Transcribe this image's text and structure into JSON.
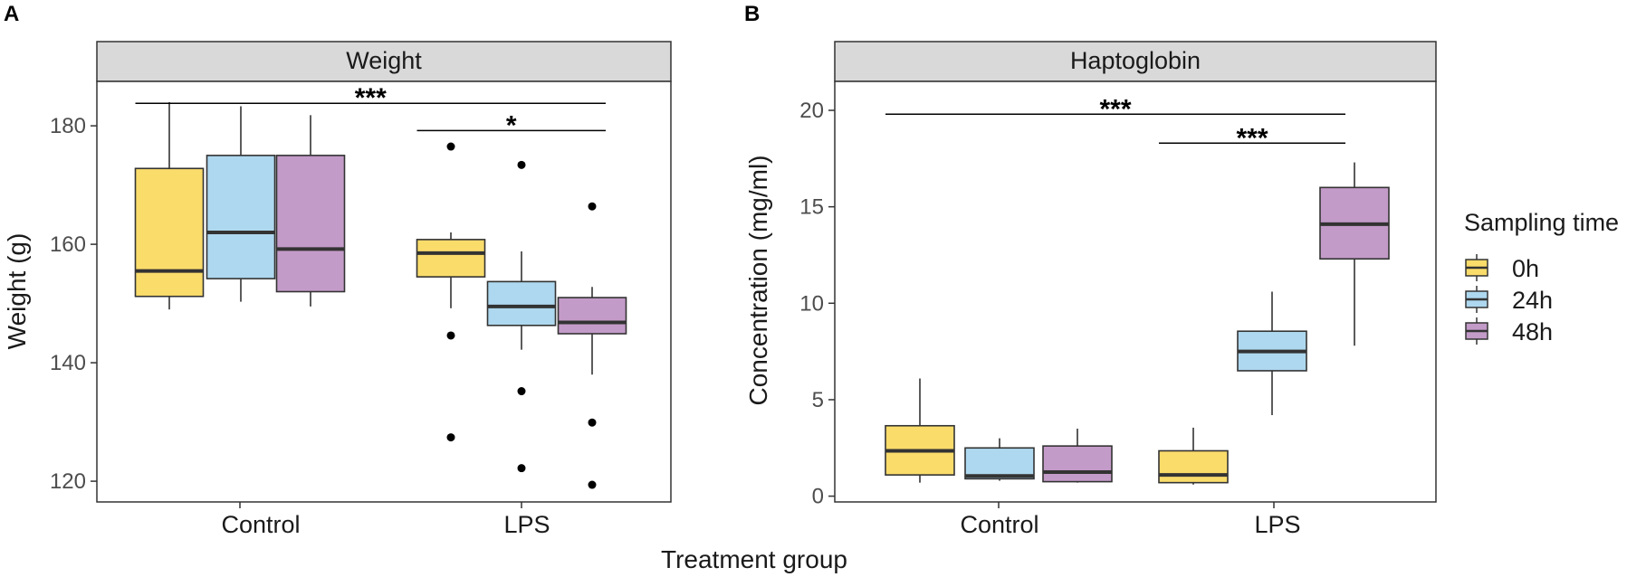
{
  "x_axis_title": "Treatment group",
  "legend": {
    "title": "Sampling time",
    "entries": [
      {
        "label": "0h",
        "color": "#fadc6b"
      },
      {
        "label": "24h",
        "color": "#aed8ef"
      },
      {
        "label": "48h",
        "color": "#c39bc8"
      }
    ]
  },
  "colors": {
    "strip_fill": "#d9d9d9",
    "box_stroke": "#333333",
    "median": "#333333"
  },
  "chart_data": [
    {
      "type": "boxplot",
      "panel_label": "A",
      "title": "Weight",
      "ylabel": "Weight (g)",
      "xlabel": "Treatment group",
      "ylim": [
        116.5,
        187.5
      ],
      "yticks": [
        120,
        140,
        160,
        180
      ],
      "groups": [
        "Control",
        "LPS"
      ],
      "series": [
        {
          "group": "Control",
          "time": "0h",
          "min": 149,
          "q1": 151.2,
          "median": 155.5,
          "q3": 172.8,
          "max": 184,
          "outliers": []
        },
        {
          "group": "Control",
          "time": "24h",
          "min": 150.3,
          "q1": 154.2,
          "median": 162,
          "q3": 175,
          "max": 183.3,
          "outliers": []
        },
        {
          "group": "Control",
          "time": "48h",
          "min": 149.5,
          "q1": 152,
          "median": 159.2,
          "q3": 175,
          "max": 181.8,
          "outliers": []
        },
        {
          "group": "LPS",
          "time": "0h",
          "min": 149.2,
          "q1": 154.5,
          "median": 158.5,
          "q3": 160.8,
          "max": 162,
          "outliers": [
            176.5,
            144.6,
            127.4
          ]
        },
        {
          "group": "LPS",
          "time": "24h",
          "min": 142.2,
          "q1": 146.3,
          "median": 149.5,
          "q3": 153.7,
          "max": 158.8,
          "outliers": [
            173.4,
            135.2,
            122.2
          ]
        },
        {
          "group": "LPS",
          "time": "48h",
          "min": 138,
          "q1": 144.9,
          "median": 146.8,
          "q3": 151,
          "max": 152.8,
          "outliers": [
            166.4,
            129.9,
            119.4
          ]
        }
      ],
      "significance": [
        {
          "label": "***",
          "y": 183.8,
          "from": 0,
          "to": 5
        },
        {
          "label": "*",
          "y": 179.2,
          "from": 3,
          "to": 5
        }
      ]
    },
    {
      "type": "boxplot",
      "panel_label": "B",
      "title": "Haptoglobin",
      "ylabel": "Concentration (mg/ml)",
      "xlabel": "Treatment group",
      "ylim": [
        -0.3,
        21.5
      ],
      "yticks": [
        0,
        5,
        10,
        15,
        20
      ],
      "groups": [
        "Control",
        "LPS"
      ],
      "series": [
        {
          "group": "Control",
          "time": "0h",
          "min": 0.7,
          "q1": 1.1,
          "median": 2.35,
          "q3": 3.65,
          "max": 6.1,
          "outliers": []
        },
        {
          "group": "Control",
          "time": "24h",
          "min": 0.8,
          "q1": 0.9,
          "median": 1.05,
          "q3": 2.5,
          "max": 3.0,
          "outliers": []
        },
        {
          "group": "Control",
          "time": "48h",
          "min": 0.7,
          "q1": 0.75,
          "median": 1.25,
          "q3": 2.6,
          "max": 3.5,
          "outliers": []
        },
        {
          "group": "LPS",
          "time": "0h",
          "min": 0.6,
          "q1": 0.7,
          "median": 1.1,
          "q3": 2.35,
          "max": 3.55,
          "outliers": []
        },
        {
          "group": "LPS",
          "time": "24h",
          "min": 4.2,
          "q1": 6.5,
          "median": 7.5,
          "q3": 8.55,
          "max": 10.6,
          "outliers": []
        },
        {
          "group": "LPS",
          "time": "48h",
          "min": 7.8,
          "q1": 12.3,
          "median": 14.1,
          "q3": 16.0,
          "max": 17.3,
          "outliers": []
        }
      ],
      "significance": [
        {
          "label": "***",
          "y": 19.8,
          "from": 0,
          "to": 5
        },
        {
          "label": "***",
          "y": 18.3,
          "from": 3,
          "to": 5
        }
      ]
    }
  ]
}
